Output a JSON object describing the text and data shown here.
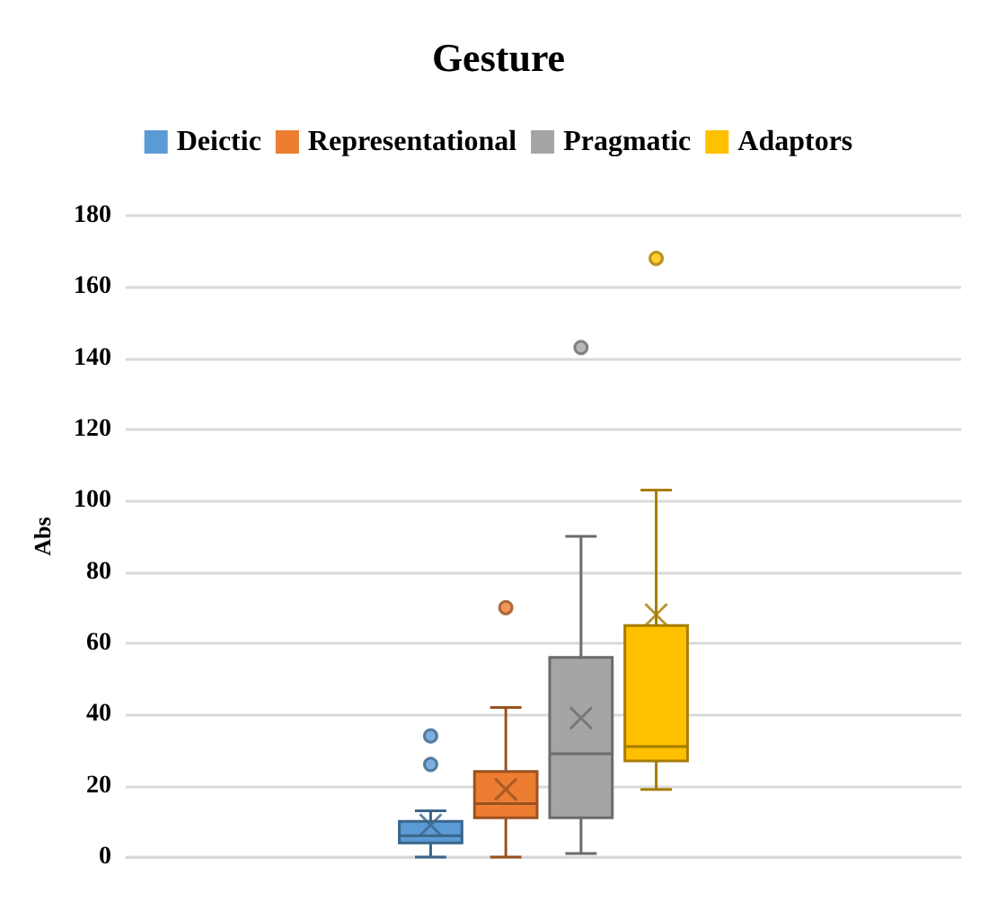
{
  "chart_data": {
    "type": "box",
    "title": "Gesture",
    "ylabel": "Abs",
    "categories": [
      null
    ],
    "series": [
      {
        "name": "Deictic",
        "color": "#5b9bd5",
        "boxes": [
          {
            "low": 0,
            "q1": 4,
            "median": 6,
            "q3": 10,
            "high": 13,
            "mean": 9,
            "outliers": [
              26,
              34
            ]
          }
        ]
      },
      {
        "name": "Representational",
        "color": "#ed7d31",
        "boxes": [
          {
            "low": 0,
            "q1": 11,
            "median": 15,
            "q3": 24,
            "high": 42,
            "mean": 19,
            "outliers": [
              70
            ]
          }
        ]
      },
      {
        "name": "Pragmatic",
        "color": "#a5a5a5",
        "boxes": [
          {
            "low": 1,
            "q1": 11,
            "median": 29,
            "q3": 56,
            "high": 90,
            "mean": 39,
            "outliers": [
              143
            ]
          }
        ]
      },
      {
        "name": "Adaptors",
        "color": "#ffc000",
        "boxes": [
          {
            "low": 19,
            "q1": 27,
            "median": 31,
            "q3": 65,
            "high": 103,
            "mean": 68,
            "outliers": [
              168
            ]
          }
        ]
      }
    ],
    "ylim": [
      0,
      180
    ],
    "yticks": [
      0,
      20,
      40,
      60,
      80,
      100,
      120,
      140,
      160,
      180
    ],
    "grid": "y",
    "legend": "top"
  }
}
